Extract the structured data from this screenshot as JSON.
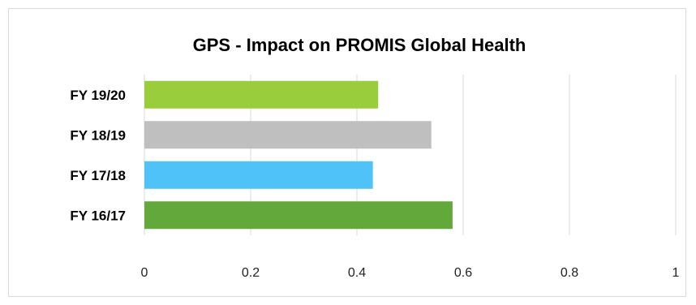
{
  "chart_data": {
    "type": "bar",
    "orientation": "horizontal",
    "title": "GPS - Impact on PROMIS Global Health",
    "categories": [
      "FY 19/20",
      "FY 18/19",
      "FY 17/18",
      "FY 16/17"
    ],
    "values": [
      0.44,
      0.54,
      0.43,
      0.58
    ],
    "bar_colors": [
      "#9ACD3C",
      "#BFBFBF",
      "#4FC3F7",
      "#63A83A"
    ],
    "xlim": [
      0,
      1
    ],
    "xticks": [
      "0",
      "0.2",
      "0.4",
      "0.6",
      "0.8",
      "1"
    ],
    "xlabel": "",
    "ylabel": "",
    "grid": true,
    "legend": "none"
  }
}
